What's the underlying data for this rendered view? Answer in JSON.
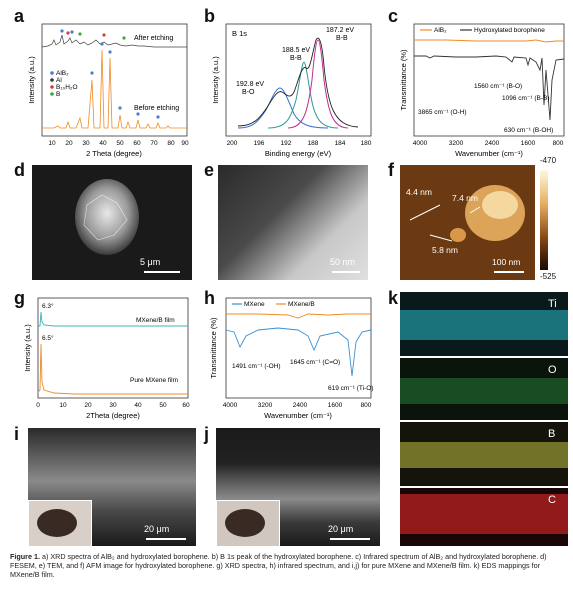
{
  "panel_letters": {
    "a": "a",
    "b": "b",
    "c": "c",
    "d": "d",
    "e": "e",
    "f": "f",
    "g": "g",
    "h": "h",
    "i": "i",
    "j": "j",
    "k": "k"
  },
  "panel_a": {
    "xlabel": "2 Theta (degree)",
    "ylabel": "Intensity (a.u.)",
    "ticks": [
      "10",
      "20",
      "30",
      "40",
      "50",
      "60",
      "70",
      "80",
      "90"
    ],
    "label_after": "After etching",
    "label_before": "Before etching",
    "legend": [
      "AlB₂",
      "Al",
      "B₁₀H₂O",
      "B"
    ]
  },
  "panel_b": {
    "title": "B 1s",
    "xlabel": "Binding energy (eV)",
    "ylabel": "Intensity (a.u.)",
    "ticks": [
      "200",
      "196",
      "192",
      "188",
      "184",
      "180"
    ],
    "ann": [
      "192.8 eV",
      "B-O",
      "188.5 eV",
      "B-B",
      "187.2 eV",
      "B-B"
    ]
  },
  "panel_c": {
    "legend": [
      "AlB₂",
      "Hydroxylated borophene"
    ],
    "ylabel": "Transmittance (%)",
    "xlabel": "Wavenumber (cm⁻¹)",
    "ticks": [
      "4000",
      "3200",
      "2400",
      "1600",
      "800"
    ],
    "ann": [
      "3865 cm⁻¹ (O-H)",
      "1560 cm⁻¹ (B-O)",
      "1096 cm⁻¹ (B-B)",
      "630 cm⁻¹ (B-OH)"
    ]
  },
  "panel_d": {
    "scale": "5 μm"
  },
  "panel_e": {
    "scale": "50 nm"
  },
  "panel_f": {
    "h1": "4.4 nm",
    "h2": "7.4 nm",
    "h3": "5.8 nm",
    "scale": "100 nm",
    "cbar_top": "-470",
    "cbar_bottom": "-525"
  },
  "panel_g": {
    "xlabel": "2Theta (degree)",
    "ylabel": "Intensity (a.u.)",
    "ticks": [
      "0",
      "10",
      "20",
      "30",
      "40",
      "50",
      "60"
    ],
    "peak1": "6.3°",
    "peak2": "6.5°",
    "label1": "MXene/B film",
    "label2": "Pure MXene film"
  },
  "panel_h": {
    "legend": [
      "MXene",
      "MXene/B"
    ],
    "ylabel": "Transmittance (%)",
    "xlabel": "Wavenumber (cm⁻¹)",
    "ticks": [
      "4000",
      "3200",
      "2400",
      "1600",
      "800"
    ],
    "ann": [
      "1491 cm⁻¹ (-OH)",
      "1645 cm⁻¹ (C=O)",
      "619 cm⁻¹ (Ti-O)"
    ]
  },
  "panel_i": {
    "scale": "20 μm"
  },
  "panel_j": {
    "scale": "20 μm"
  },
  "panel_k": {
    "maps": [
      "Ti",
      "O",
      "B",
      "C"
    ]
  },
  "caption": {
    "lead": "Figure 1.",
    "text": " a) XRD spectra of AlB₂ and hydroxylated borophene. b) B 1s peak of the hydroxylated borophene. c) Infrared spectrum of AlB₂ and hydroxylated borophene. d) FESEM, e) TEM, and f) AFM image for hydroxylated borophene. g) XRD spectra, h) infrared spectrum, and i,j) for pure MXene and MXene/B film. k) EDS mappings for MXene/B film."
  },
  "colors": {
    "orange": "#f08a24",
    "blue": "#3a8fd0",
    "teal": "#3cb4b4",
    "dark": "#333333"
  }
}
